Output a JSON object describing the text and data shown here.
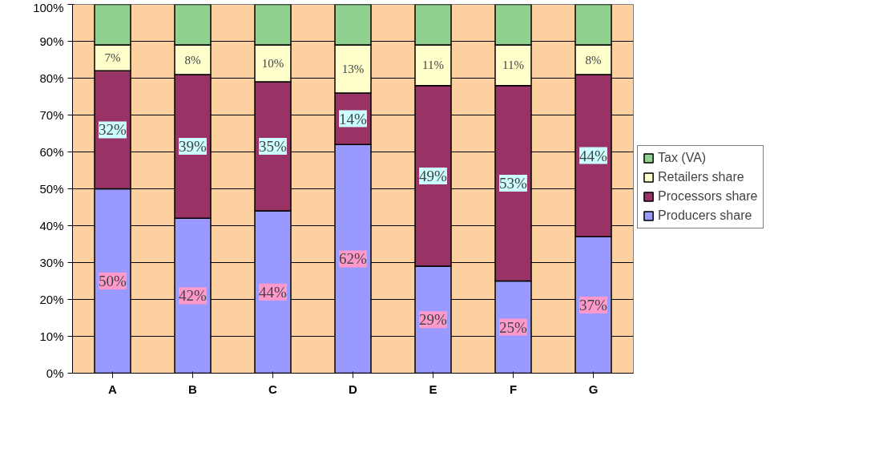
{
  "chart_data": {
    "type": "bar",
    "stacked": true,
    "categories": [
      "A",
      "B",
      "C",
      "D",
      "E",
      "F",
      "G"
    ],
    "series": [
      {
        "name": "Producers share",
        "color": "#9999ff",
        "values": [
          50,
          42,
          44,
          62,
          29,
          25,
          37
        ],
        "value_labels": [
          "50%",
          "42%",
          "44%",
          "62%",
          "29%",
          "25%",
          "37%"
        ]
      },
      {
        "name": "Processors share",
        "color": "#993366",
        "values": [
          32,
          39,
          35,
          14,
          49,
          53,
          44
        ],
        "value_labels": [
          "32%",
          "39%",
          "35%",
          "14%",
          "49%",
          "53%",
          "44%"
        ]
      },
      {
        "name": "Retailers share",
        "color": "#ffffcc",
        "values": [
          7,
          8,
          10,
          13,
          11,
          11,
          8
        ],
        "value_labels": [
          "7%",
          "8%",
          "10%",
          "13%",
          "11%",
          "11%",
          "8%"
        ]
      },
      {
        "name": "Tax (VA)",
        "color": "#8fd18f",
        "values": [
          11,
          11,
          11,
          11,
          11,
          11,
          11
        ]
      }
    ],
    "ylim": [
      0,
      100
    ],
    "yticks": [
      {
        "value": 0,
        "label": "0%"
      },
      {
        "value": 10,
        "label": "10%"
      },
      {
        "value": 20,
        "label": "20%"
      },
      {
        "value": 30,
        "label": "30%"
      },
      {
        "value": 40,
        "label": "40%"
      },
      {
        "value": 50,
        "label": "50%"
      },
      {
        "value": 60,
        "label": "60%"
      },
      {
        "value": 70,
        "label": "70%"
      },
      {
        "value": 80,
        "label": "80%"
      },
      {
        "value": 90,
        "label": "90%"
      },
      {
        "value": 100,
        "label": "100%"
      }
    ],
    "grid": "y",
    "legend": "right"
  }
}
